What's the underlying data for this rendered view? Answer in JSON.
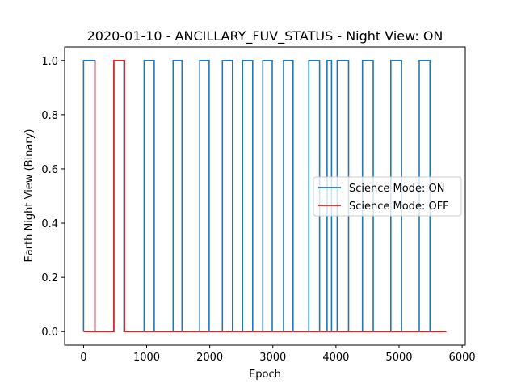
{
  "chart_data": {
    "type": "line",
    "title": "2020-01-10 - ANCILLARY_FUV_STATUS - Night View: ON",
    "xlabel": "Epoch",
    "ylabel": "Earth Night View (Binary)",
    "xlim": [
      -300,
      6050
    ],
    "ylim": [
      -0.05,
      1.05
    ],
    "xticks": [
      0,
      1000,
      2000,
      3000,
      4000,
      5000,
      6000
    ],
    "yticks": [
      0.0,
      0.2,
      0.4,
      0.6,
      0.8,
      1.0
    ],
    "xtick_labels": [
      "0",
      "1000",
      "2000",
      "3000",
      "4000",
      "5000",
      "6000"
    ],
    "ytick_labels": [
      "0.0",
      "0.2",
      "0.4",
      "0.6",
      "0.8",
      "1.0"
    ],
    "grid": false,
    "legend_position": "center-right",
    "series": [
      {
        "name": "Science Mode: ON",
        "color": "#1f77b4",
        "x": [
          0,
          0,
          180,
          180,
          480,
          480,
          640,
          640,
          960,
          960,
          1120,
          1120,
          1420,
          1420,
          1560,
          1560,
          1840,
          1840,
          1990,
          1990,
          2200,
          2200,
          2360,
          2360,
          2520,
          2520,
          2680,
          2680,
          2840,
          2840,
          2990,
          2990,
          3170,
          3170,
          3320,
          3320,
          3570,
          3570,
          3740,
          3740,
          3860,
          3860,
          3930,
          3930,
          4020,
          4020,
          4200,
          4200,
          4420,
          4420,
          4590,
          4590,
          4870,
          4870,
          5040,
          5040,
          5320,
          5320,
          5490,
          5490
        ],
        "y": [
          0,
          1,
          1,
          0,
          0,
          1,
          1,
          0,
          0,
          1,
          1,
          0,
          0,
          1,
          1,
          0,
          0,
          1,
          1,
          0,
          0,
          1,
          1,
          0,
          0,
          1,
          1,
          0,
          0,
          1,
          1,
          0,
          0,
          1,
          1,
          0,
          0,
          1,
          1,
          0,
          0,
          1,
          1,
          0,
          0,
          1,
          1,
          0,
          0,
          1,
          1,
          0,
          0,
          1,
          1,
          0,
          0,
          1,
          1,
          0
        ]
      },
      {
        "name": "Science Mode: OFF",
        "color": "#d62728",
        "x": [
          0,
          180,
          180,
          180,
          480,
          480,
          650,
          650,
          5750
        ],
        "y": [
          0,
          0,
          1,
          0,
          0,
          1,
          1,
          0,
          0
        ]
      }
    ]
  }
}
